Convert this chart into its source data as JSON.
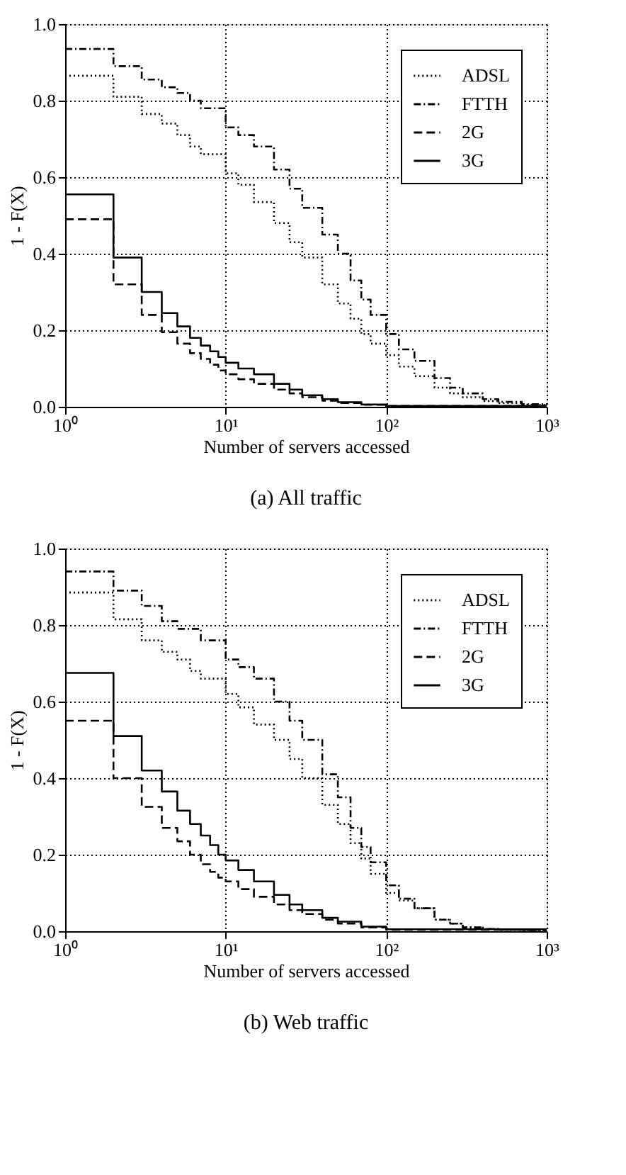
{
  "chart_data": [
    {
      "type": "step",
      "title": "(a)  All traffic",
      "xlabel": "Number of servers accessed",
      "ylabel": "1 - F(X)",
      "log": "x",
      "grid": true,
      "legend": "top right",
      "xlim": [
        1,
        1000
      ],
      "xticks": [
        {
          "value": 1,
          "label": "10⁰"
        },
        {
          "value": 10,
          "label": "10¹"
        },
        {
          "value": 100,
          "label": "10²"
        },
        {
          "value": 1000,
          "label": "10³"
        }
      ],
      "ylim": [
        0,
        1
      ],
      "yticks": [
        {
          "value": 0,
          "label": "0.0"
        },
        {
          "value": 0.2,
          "label": "0.2"
        },
        {
          "value": 0.4,
          "label": "0.4"
        },
        {
          "value": 0.6,
          "label": "0.6"
        },
        {
          "value": 0.8,
          "label": "0.8"
        },
        {
          "value": 1,
          "label": "1.0"
        }
      ],
      "series": [
        {
          "name": "ADSL",
          "color": "#000000",
          "line_style": "dotted",
          "x": [
            1,
            2,
            3,
            4,
            5,
            6,
            7,
            10,
            12,
            15,
            20,
            25,
            30,
            40,
            50,
            60,
            70,
            80,
            100,
            120,
            150,
            200,
            250,
            300,
            400,
            500,
            700,
            1000
          ],
          "values": [
            0.865,
            0.81,
            0.765,
            0.74,
            0.71,
            0.68,
            0.66,
            0.61,
            0.58,
            0.535,
            0.48,
            0.43,
            0.39,
            0.32,
            0.27,
            0.23,
            0.19,
            0.165,
            0.135,
            0.105,
            0.08,
            0.05,
            0.035,
            0.025,
            0.015,
            0.01,
            0.005,
            0.003
          ]
        },
        {
          "name": "FTTH",
          "color": "#000000",
          "line_style": "dashdot",
          "x": [
            1,
            2,
            3,
            4,
            5,
            6,
            7,
            10,
            12,
            15,
            20,
            25,
            30,
            40,
            50,
            60,
            70,
            80,
            100,
            120,
            150,
            200,
            250,
            300,
            400,
            500,
            700,
            1000
          ],
          "values": [
            0.935,
            0.89,
            0.855,
            0.835,
            0.82,
            0.8,
            0.78,
            0.73,
            0.71,
            0.68,
            0.62,
            0.57,
            0.52,
            0.45,
            0.4,
            0.33,
            0.28,
            0.24,
            0.19,
            0.15,
            0.12,
            0.075,
            0.05,
            0.035,
            0.02,
            0.013,
            0.007,
            0.003
          ]
        },
        {
          "name": "2G",
          "color": "#000000",
          "line_style": "dashed",
          "x": [
            1,
            2,
            3,
            4,
            5,
            6,
            7,
            8,
            9,
            10,
            12,
            15,
            20,
            25,
            30,
            40,
            50,
            70,
            100,
            1000
          ],
          "values": [
            0.49,
            0.32,
            0.24,
            0.195,
            0.165,
            0.14,
            0.125,
            0.11,
            0.095,
            0.085,
            0.072,
            0.06,
            0.045,
            0.035,
            0.025,
            0.016,
            0.01,
            0.005,
            0.002,
            0
          ]
        },
        {
          "name": "3G",
          "color": "#000000",
          "line_style": "solid",
          "x": [
            1,
            2,
            3,
            4,
            5,
            6,
            7,
            8,
            9,
            10,
            12,
            15,
            20,
            25,
            30,
            40,
            50,
            70,
            100,
            1000
          ],
          "values": [
            0.555,
            0.39,
            0.3,
            0.245,
            0.21,
            0.18,
            0.16,
            0.145,
            0.13,
            0.115,
            0.1,
            0.085,
            0.06,
            0.045,
            0.03,
            0.02,
            0.012,
            0.006,
            0.002,
            0
          ]
        }
      ]
    },
    {
      "type": "step",
      "title": "(b)  Web traffic",
      "xlabel": "Number of servers accessed",
      "ylabel": "1 - F(X)",
      "log": "x",
      "grid": true,
      "legend": "top right",
      "xlim": [
        1,
        1000
      ],
      "xticks": [
        {
          "value": 1,
          "label": "10⁰"
        },
        {
          "value": 10,
          "label": "10¹"
        },
        {
          "value": 100,
          "label": "10²"
        },
        {
          "value": 1000,
          "label": "10³"
        }
      ],
      "ylim": [
        0,
        1
      ],
      "yticks": [
        {
          "value": 0,
          "label": "0.0"
        },
        {
          "value": 0.2,
          "label": "0.2"
        },
        {
          "value": 0.4,
          "label": "0.4"
        },
        {
          "value": 0.6,
          "label": "0.6"
        },
        {
          "value": 0.8,
          "label": "0.8"
        },
        {
          "value": 1,
          "label": "1.0"
        }
      ],
      "series": [
        {
          "name": "ADSL",
          "color": "#000000",
          "line_style": "dotted",
          "x": [
            1,
            2,
            3,
            4,
            5,
            6,
            7,
            10,
            12,
            15,
            20,
            25,
            30,
            40,
            50,
            60,
            70,
            80,
            100,
            120,
            150,
            200,
            250,
            300,
            400,
            500,
            700,
            1000
          ],
          "values": [
            0.885,
            0.815,
            0.76,
            0.73,
            0.71,
            0.68,
            0.66,
            0.62,
            0.585,
            0.54,
            0.5,
            0.45,
            0.4,
            0.33,
            0.28,
            0.23,
            0.19,
            0.15,
            0.1,
            0.08,
            0.06,
            0.03,
            0.02,
            0.01,
            0.006,
            0.004,
            0.003,
            0.002
          ]
        },
        {
          "name": "FTTH",
          "color": "#000000",
          "line_style": "dashdot",
          "x": [
            1,
            2,
            3,
            4,
            5,
            7,
            10,
            12,
            15,
            20,
            25,
            30,
            40,
            50,
            60,
            70,
            80,
            100,
            120,
            150,
            200,
            250,
            300,
            400,
            500,
            700,
            1000
          ],
          "values": [
            0.94,
            0.89,
            0.85,
            0.81,
            0.79,
            0.76,
            0.71,
            0.69,
            0.66,
            0.6,
            0.55,
            0.5,
            0.41,
            0.35,
            0.27,
            0.22,
            0.18,
            0.12,
            0.085,
            0.06,
            0.03,
            0.02,
            0.01,
            0.006,
            0.004,
            0.003,
            0.002
          ]
        },
        {
          "name": "2G",
          "color": "#000000",
          "line_style": "dashed",
          "x": [
            1,
            2,
            3,
            4,
            5,
            6,
            7,
            8,
            9,
            10,
            12,
            15,
            20,
            25,
            30,
            40,
            50,
            70,
            100,
            1000
          ],
          "values": [
            0.55,
            0.4,
            0.325,
            0.27,
            0.235,
            0.2,
            0.175,
            0.155,
            0.14,
            0.13,
            0.11,
            0.09,
            0.07,
            0.055,
            0.045,
            0.03,
            0.02,
            0.01,
            0.004,
            0
          ]
        },
        {
          "name": "3G",
          "color": "#000000",
          "line_style": "solid",
          "x": [
            1,
            2,
            3,
            4,
            5,
            6,
            7,
            8,
            9,
            10,
            12,
            15,
            20,
            25,
            30,
            40,
            50,
            70,
            100,
            1000
          ],
          "values": [
            0.675,
            0.51,
            0.42,
            0.365,
            0.315,
            0.28,
            0.25,
            0.225,
            0.2,
            0.185,
            0.16,
            0.13,
            0.095,
            0.07,
            0.055,
            0.035,
            0.025,
            0.012,
            0.005,
            0
          ]
        }
      ]
    }
  ]
}
